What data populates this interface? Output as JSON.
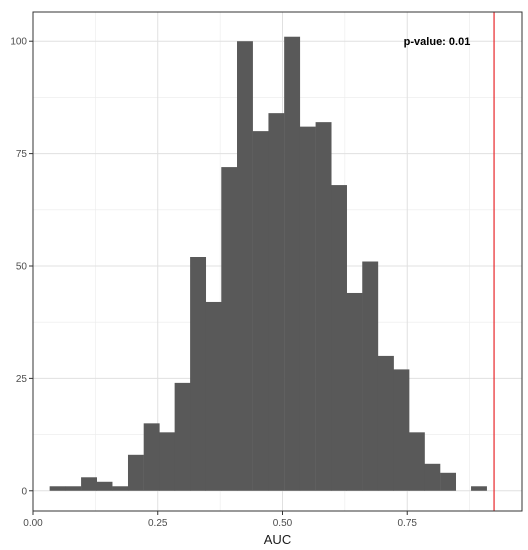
{
  "chart_data": {
    "type": "bar",
    "subtype": "histogram",
    "xlabel": "AUC",
    "ylabel": "",
    "xlim": [
      0.0,
      0.98
    ],
    "ylim": [
      -4.5,
      106.5
    ],
    "x_ticks": [
      0.0,
      0.25,
      0.5,
      0.75
    ],
    "x_tick_labels": [
      "0.00",
      "0.25",
      "0.50",
      "0.75"
    ],
    "y_ticks": [
      0,
      25,
      50,
      75,
      100
    ],
    "y_tick_labels": [
      "0",
      "25",
      "50",
      "75",
      "100"
    ],
    "grid": true,
    "bin_width": 0.0313,
    "bins": [
      {
        "x": 0.049,
        "count": 1
      },
      {
        "x": 0.0805,
        "count": 1
      },
      {
        "x": 0.112,
        "count": 3
      },
      {
        "x": 0.143,
        "count": 2
      },
      {
        "x": 0.1745,
        "count": 1
      },
      {
        "x": 0.206,
        "count": 8
      },
      {
        "x": 0.2375,
        "count": 15
      },
      {
        "x": 0.2685,
        "count": 13
      },
      {
        "x": 0.2995,
        "count": 24
      },
      {
        "x": 0.3305,
        "count": 52
      },
      {
        "x": 0.3615,
        "count": 42
      },
      {
        "x": 0.393,
        "count": 72
      },
      {
        "x": 0.4245,
        "count": 100
      },
      {
        "x": 0.456,
        "count": 80
      },
      {
        "x": 0.4875,
        "count": 84
      },
      {
        "x": 0.519,
        "count": 101
      },
      {
        "x": 0.5505,
        "count": 81
      },
      {
        "x": 0.582,
        "count": 82
      },
      {
        "x": 0.613,
        "count": 68
      },
      {
        "x": 0.644,
        "count": 44
      },
      {
        "x": 0.6755,
        "count": 51
      },
      {
        "x": 0.707,
        "count": 30
      },
      {
        "x": 0.738,
        "count": 27
      },
      {
        "x": 0.769,
        "count": 13
      },
      {
        "x": 0.8,
        "count": 6
      },
      {
        "x": 0.8315,
        "count": 4
      },
      {
        "x": 0.8625,
        "count": 0
      },
      {
        "x": 0.8935,
        "count": 1
      }
    ],
    "bar_color": "#595959",
    "reference_line": {
      "x": 0.924,
      "color": "#e8262a"
    },
    "annotation": "p-value: 0.01"
  }
}
